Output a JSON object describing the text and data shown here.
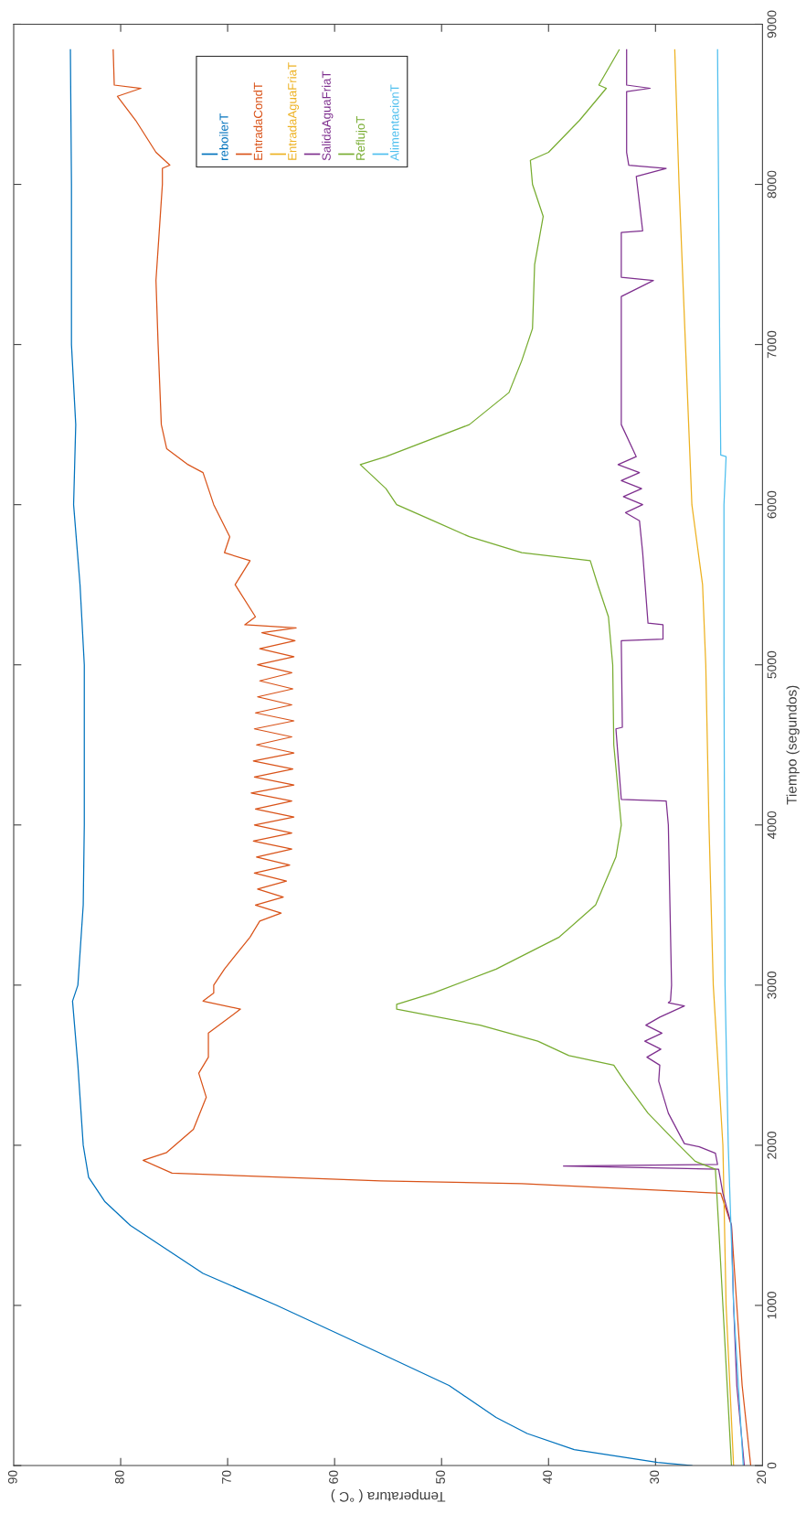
{
  "chart_data": {
    "type": "line",
    "orientation": "horizontal",
    "xlabel": "Temperatura ( °C )",
    "ylabel": "Tiempo (segundos)",
    "xlim": [
      90,
      20
    ],
    "xticks": [
      20,
      30,
      40,
      50,
      60,
      70,
      80,
      90
    ],
    "ylim": [
      0,
      9000
    ],
    "yticks": [
      0,
      1000,
      2000,
      3000,
      4000,
      5000,
      6000,
      7000,
      8000,
      9000
    ],
    "legend": "top left",
    "grid": false,
    "series": [
      {
        "name": "reboilerT",
        "color": "#0072bd",
        "x": [
          0,
          20,
          100,
          200,
          300,
          500,
          700,
          1000,
          1200,
          1500,
          1650,
          1800,
          2000,
          2500,
          2900,
          3000,
          3500,
          4000,
          5000,
          5500,
          6000,
          6500,
          7000,
          8000,
          8840
        ],
        "values": [
          26.6,
          29.8,
          37.6,
          42.0,
          44.9,
          49.3,
          55.7,
          65.4,
          72.3,
          79.1,
          81.5,
          83.0,
          83.5,
          84.0,
          84.5,
          84.0,
          83.5,
          83.4,
          83.4,
          83.8,
          84.4,
          84.2,
          84.6,
          84.6,
          84.7
        ]
      },
      {
        "name": "EntradaCondT",
        "color": "#d95319",
        "x": [
          0,
          500,
          1000,
          1500,
          1700,
          1761,
          1777,
          1826,
          1906,
          1955,
          2100,
          2300,
          2450,
          2550,
          2700,
          2850,
          2900,
          2950,
          3000,
          3100,
          3300,
          3400,
          3450,
          3500,
          3550,
          3600,
          3650,
          3700,
          3750,
          3800,
          3850,
          3900,
          3950,
          4000,
          4050,
          4100,
          4150,
          4200,
          4250,
          4300,
          4350,
          4400,
          4450,
          4500,
          4550,
          4600,
          4650,
          4700,
          4750,
          4800,
          4850,
          4900,
          4950,
          5000,
          5050,
          5100,
          5150,
          5200,
          5230,
          5250,
          5300,
          5500,
          5650,
          5700,
          5800,
          6000,
          6200,
          6250,
          6350,
          6500,
          7000,
          7400,
          8000,
          8100,
          8120,
          8200,
          8400,
          8550,
          8600,
          8620,
          8840
        ],
        "values": [
          21.1,
          21.9,
          22.4,
          22.9,
          23.9,
          42.5,
          55.7,
          75.2,
          77.9,
          75.7,
          73.2,
          72.0,
          72.7,
          71.8,
          71.8,
          68.8,
          72.3,
          71.3,
          71.3,
          70.3,
          67.9,
          67.0,
          65.0,
          67.4,
          64.8,
          67.2,
          64.5,
          67.5,
          64.2,
          67.3,
          64.0,
          67.6,
          64.0,
          67.5,
          63.8,
          67.4,
          64.0,
          67.8,
          63.8,
          67.5,
          63.9,
          67.6,
          63.8,
          67.3,
          64.0,
          67.5,
          63.8,
          67.4,
          64.0,
          67.2,
          63.9,
          67.0,
          64.0,
          67.2,
          63.8,
          67.0,
          63.7,
          66.8,
          63.6,
          68.4,
          67.4,
          69.3,
          67.9,
          70.3,
          69.8,
          71.3,
          72.3,
          73.7,
          75.7,
          76.2,
          76.5,
          76.7,
          76.1,
          76.1,
          75.4,
          76.7,
          78.6,
          80.3,
          78.1,
          80.6,
          80.7
        ]
      },
      {
        "name": "EntradaAguaFriaT",
        "color": "#edb120",
        "x": [
          0,
          1000,
          2000,
          3000,
          4000,
          5000,
          5500,
          6000,
          7000,
          8000,
          8840
        ],
        "values": [
          22.7,
          23.4,
          23.7,
          24.6,
          25.0,
          25.3,
          25.6,
          26.6,
          27.2,
          27.8,
          28.2
        ]
      },
      {
        "name": "SalidaAguaFriaT",
        "color": "#7e2f8e",
        "x": [
          0,
          500,
          1000,
          1500,
          1700,
          1850,
          1870,
          1880,
          1950,
          1990,
          2010,
          2200,
          2400,
          2500,
          2550,
          2600,
          2650,
          2700,
          2750,
          2800,
          2870,
          2890,
          2900,
          3000,
          4000,
          4150,
          4160,
          4600,
          4610,
          5150,
          5160,
          5250,
          5260,
          5700,
          5900,
          5950,
          6000,
          6050,
          6100,
          6150,
          6200,
          6250,
          6300,
          6500,
          7300,
          7400,
          7420,
          7700,
          7710,
          8050,
          8100,
          8120,
          8200,
          8580,
          8600,
          8620,
          8840
        ],
        "values": [
          21.7,
          22.4,
          22.7,
          22.9,
          23.7,
          24.1,
          38.6,
          24.2,
          24.4,
          25.9,
          27.3,
          28.8,
          29.7,
          29.6,
          30.8,
          29.5,
          31.0,
          29.4,
          30.9,
          29.6,
          27.3,
          28.8,
          28.6,
          28.5,
          28.8,
          29.0,
          33.2,
          33.7,
          33.1,
          33.2,
          29.3,
          29.3,
          30.7,
          31.2,
          31.5,
          32.8,
          31.2,
          33.0,
          31.3,
          33.2,
          31.5,
          33.5,
          31.8,
          33.2,
          33.2,
          30.2,
          33.2,
          33.2,
          31.2,
          31.8,
          29.0,
          32.5,
          32.7,
          32.7,
          30.5,
          32.7,
          32.7
        ]
      },
      {
        "name": "ReflujoT",
        "color": "#77ac30",
        "x": [
          0,
          1000,
          1500,
          1850,
          1900,
          2000,
          2200,
          2400,
          2500,
          2560,
          2650,
          2750,
          2850,
          2880,
          2950,
          3100,
          3300,
          3500,
          3800,
          4000,
          4500,
          5000,
          5300,
          5500,
          5650,
          5700,
          5800,
          5900,
          6000,
          6100,
          6250,
          6300,
          6500,
          6700,
          6900,
          7100,
          7500,
          7800,
          8000,
          8150,
          8200,
          8400,
          8600,
          8620,
          8840
        ],
        "values": [
          22.9,
          23.7,
          24.1,
          24.4,
          26.3,
          27.8,
          30.7,
          32.9,
          33.9,
          38.1,
          41.0,
          46.4,
          54.2,
          54.2,
          50.8,
          44.9,
          39.0,
          35.6,
          33.7,
          33.2,
          33.9,
          34.0,
          34.4,
          35.4,
          36.1,
          42.5,
          47.4,
          50.8,
          54.2,
          55.2,
          57.6,
          55.2,
          47.4,
          43.7,
          42.5,
          41.5,
          41.3,
          40.5,
          41.5,
          41.7,
          40.0,
          37.1,
          34.6,
          35.3,
          33.4
        ]
      },
      {
        "name": "AlimentacionT",
        "color": "#4dbeee",
        "x": [
          0,
          1000,
          2000,
          3000,
          5000,
          6000,
          6300,
          6310,
          7000,
          8840
        ],
        "values": [
          21.8,
          22.7,
          23.2,
          23.5,
          23.6,
          23.6,
          23.4,
          23.9,
          24.0,
          24.2
        ]
      }
    ]
  }
}
